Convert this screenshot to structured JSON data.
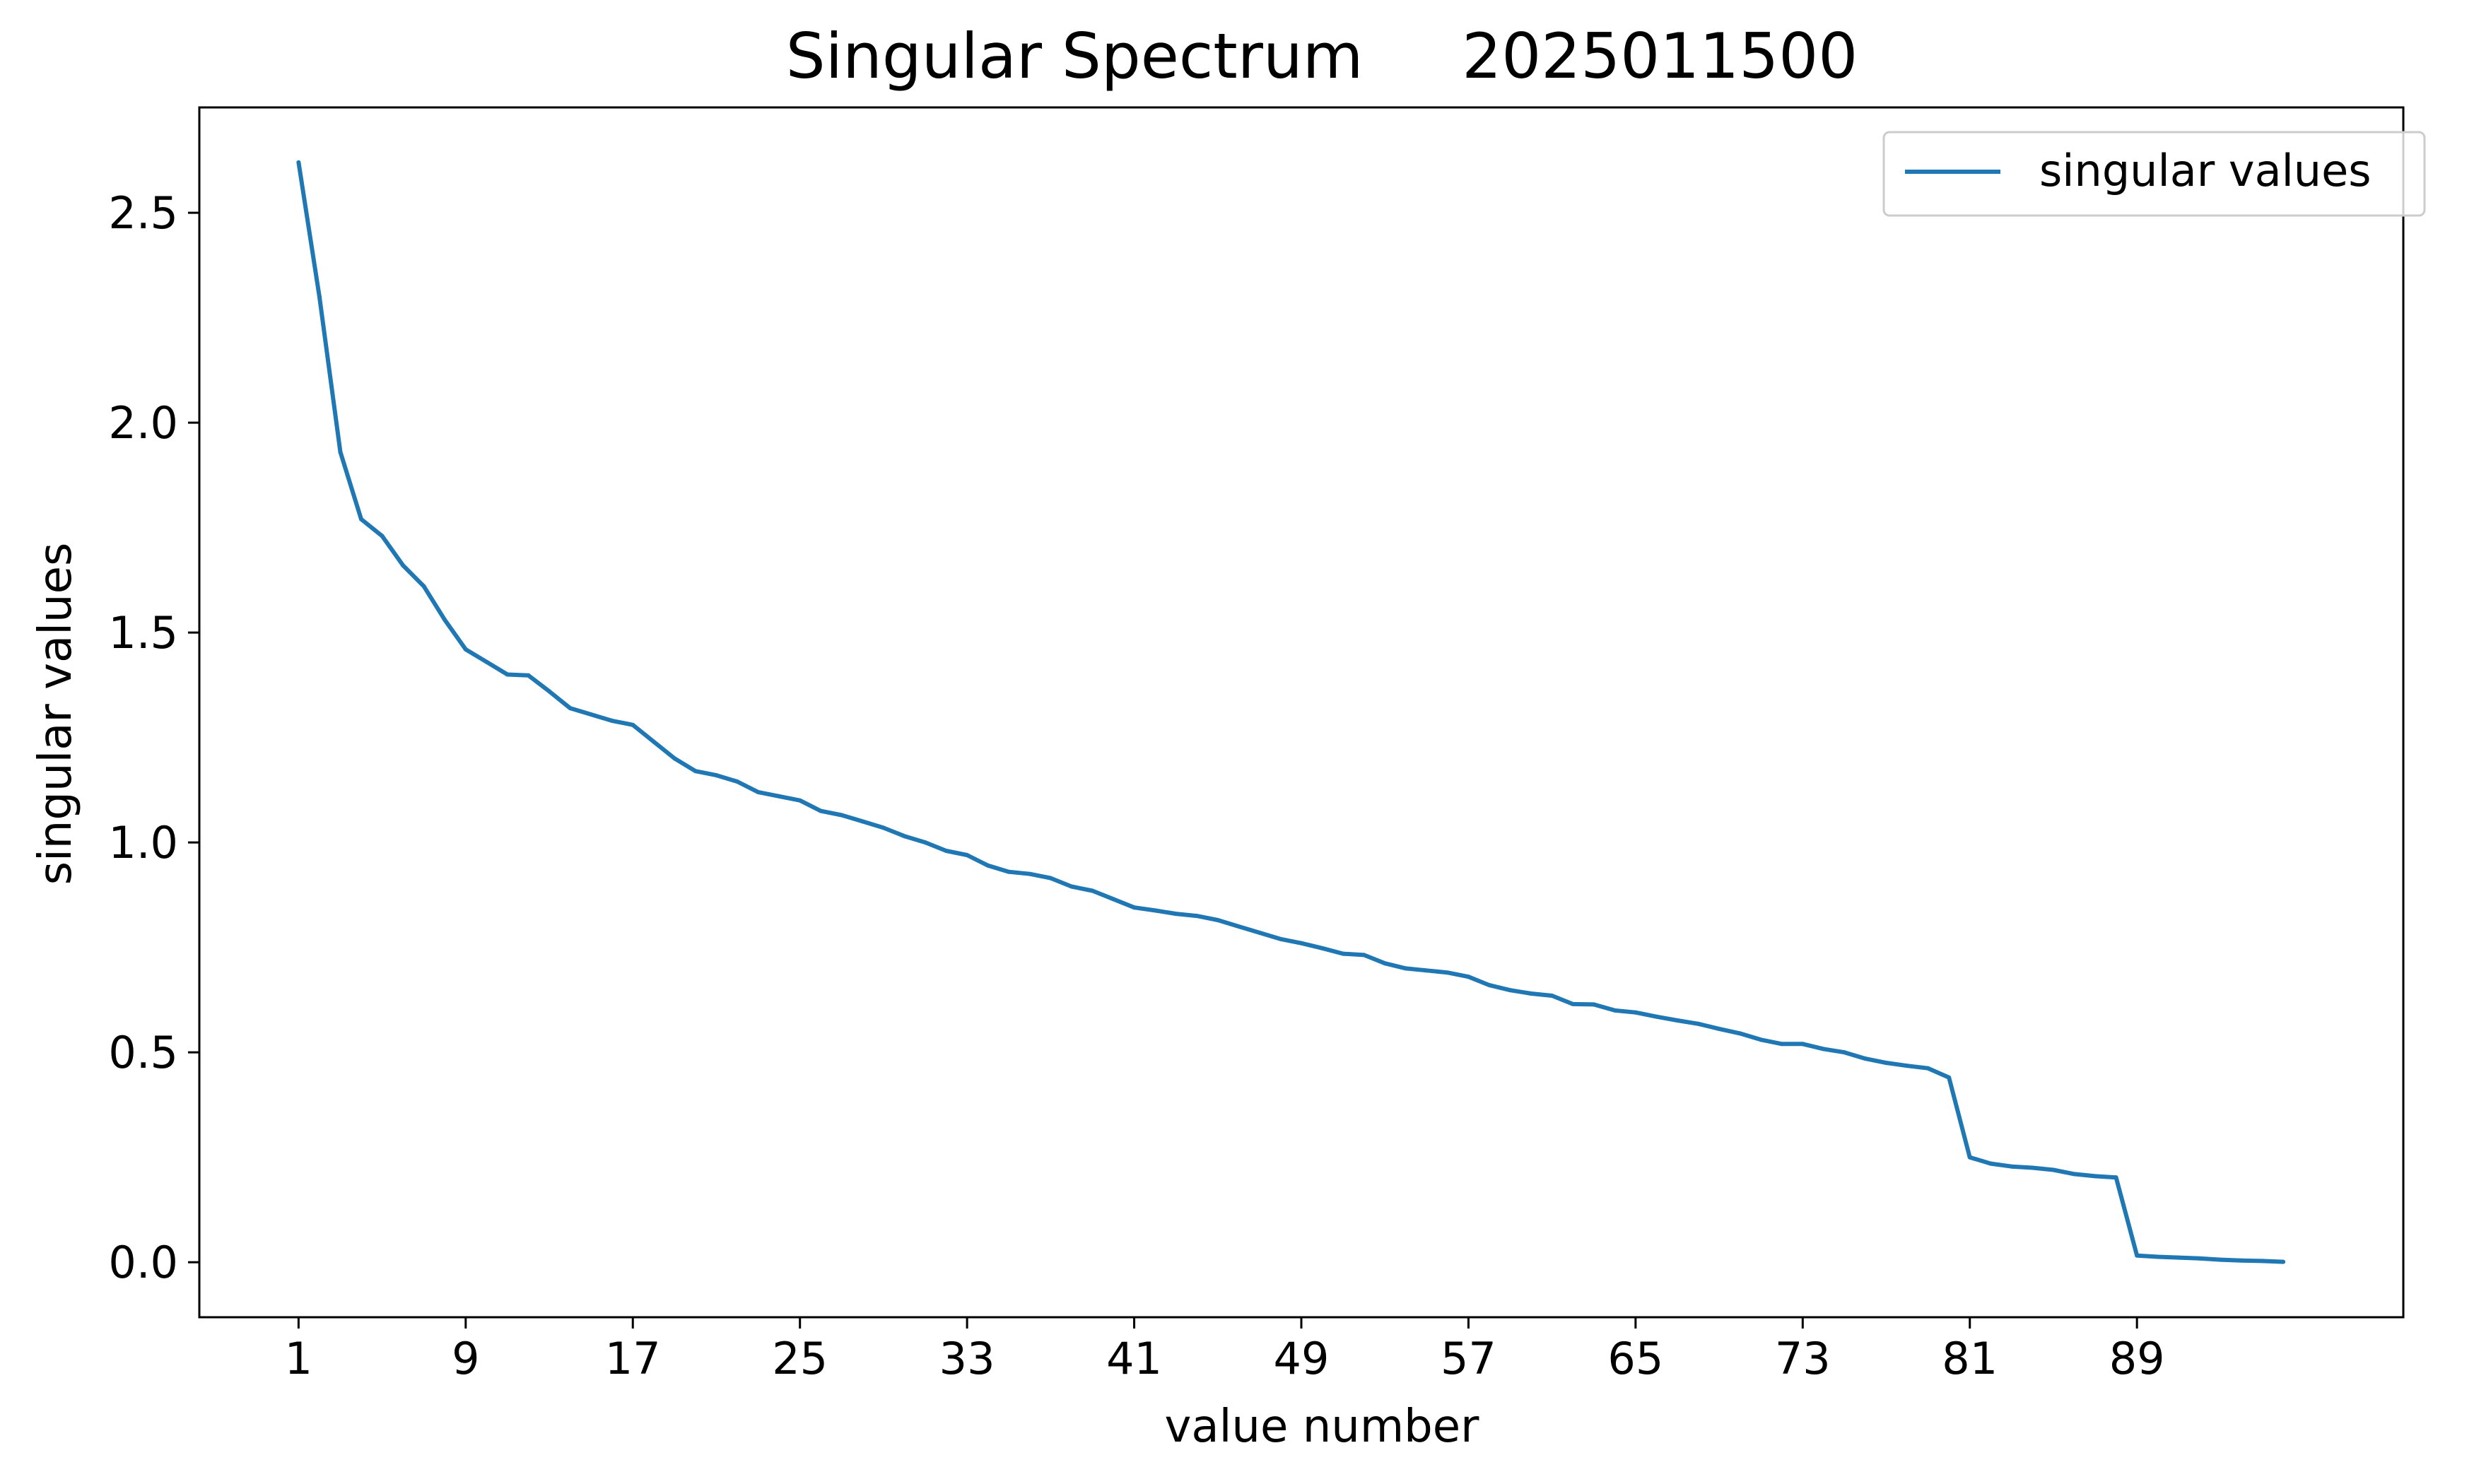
{
  "chart_data": {
    "type": "line",
    "title": "Singular Spectrum     2025011500",
    "xlabel": "value number",
    "ylabel": "singular values",
    "xlim": [
      -3.75,
      101.75
    ],
    "ylim": [
      -0.131,
      2.751
    ],
    "xticks": [
      1,
      9,
      17,
      25,
      33,
      41,
      49,
      57,
      65,
      73,
      81,
      89
    ],
    "xtick_labels": [
      "1",
      "9",
      "17",
      "25",
      "33",
      "41",
      "49",
      "57",
      "65",
      "73",
      "81",
      "89"
    ],
    "yticks": [
      0.0,
      0.5,
      1.0,
      1.5,
      2.0,
      2.5
    ],
    "ytick_labels": [
      "0.0",
      "0.5",
      "1.0",
      "1.5",
      "2.0",
      "2.5"
    ],
    "grid": false,
    "legend_position": "top-right",
    "x": [
      1,
      2,
      3,
      4,
      5,
      6,
      7,
      8,
      9,
      10,
      11,
      12,
      13,
      14,
      15,
      16,
      17,
      18,
      19,
      20,
      21,
      22,
      23,
      24,
      25,
      26,
      27,
      28,
      29,
      30,
      31,
      32,
      33,
      34,
      35,
      36,
      37,
      38,
      39,
      40,
      41,
      42,
      43,
      44,
      45,
      46,
      47,
      48,
      49,
      50,
      51,
      52,
      53,
      54,
      55,
      56,
      57,
      58,
      59,
      60,
      61,
      62,
      63,
      64,
      65,
      66,
      67,
      68,
      69,
      70,
      71,
      72,
      73,
      74,
      75,
      76,
      77,
      78,
      79,
      80,
      81,
      82,
      83,
      84,
      85,
      86,
      87,
      88,
      89,
      90,
      91,
      92,
      93,
      94,
      95,
      96
    ],
    "series": [
      {
        "name": "singular values",
        "color": "#1f77b4",
        "values": [
          2.62,
          2.3,
          1.93,
          1.77,
          1.73,
          1.66,
          1.61,
          1.53,
          1.46,
          1.43,
          1.4,
          1.398,
          1.36,
          1.32,
          1.305,
          1.29,
          1.28,
          1.24,
          1.2,
          1.17,
          1.16,
          1.145,
          1.12,
          1.11,
          1.1,
          1.075,
          1.065,
          1.05,
          1.035,
          1.015,
          1.0,
          0.98,
          0.97,
          0.945,
          0.93,
          0.925,
          0.915,
          0.895,
          0.885,
          0.865,
          0.845,
          0.838,
          0.83,
          0.825,
          0.815,
          0.8,
          0.785,
          0.77,
          0.76,
          0.748,
          0.735,
          0.732,
          0.712,
          0.7,
          0.695,
          0.69,
          0.68,
          0.66,
          0.648,
          0.64,
          0.635,
          0.615,
          0.614,
          0.6,
          0.595,
          0.585,
          0.576,
          0.568,
          0.556,
          0.545,
          0.53,
          0.52,
          0.52,
          0.508,
          0.5,
          0.485,
          0.475,
          0.468,
          0.462,
          0.44,
          0.25,
          0.235,
          0.228,
          0.225,
          0.22,
          0.21,
          0.205,
          0.202,
          0.016,
          0.013,
          0.011,
          0.009,
          0.006,
          0.004,
          0.003,
          0.001
        ]
      }
    ]
  }
}
